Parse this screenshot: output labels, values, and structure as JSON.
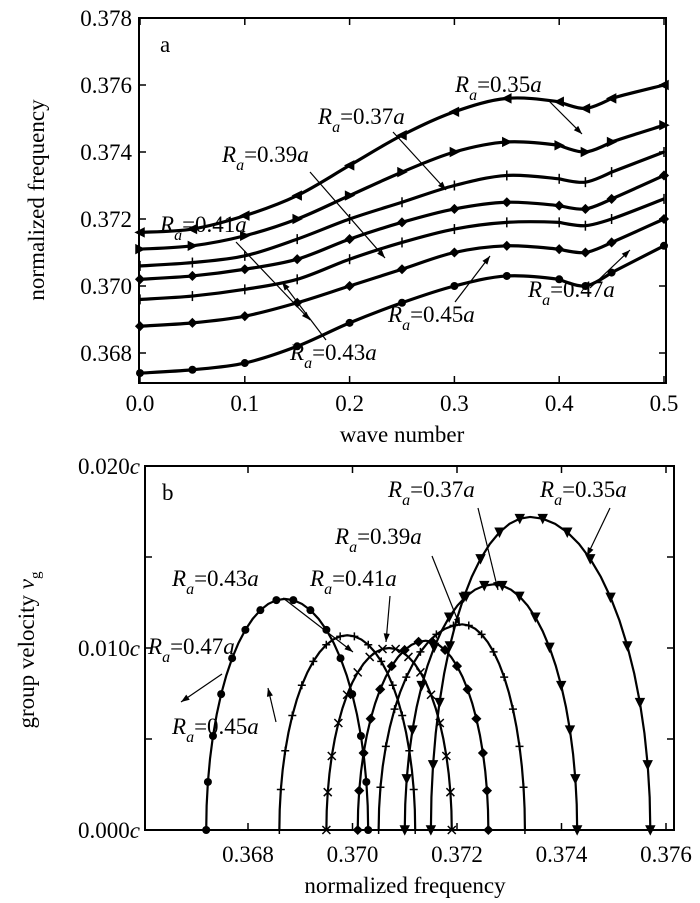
{
  "chart_data": [
    {
      "type": "line",
      "panel_label": "a",
      "xlabel": "wave number",
      "ylabel": "normalized frequency",
      "xlim": [
        0.0,
        0.5
      ],
      "ylim": [
        0.36708,
        0.378
      ],
      "xticks": [
        "0.0",
        "0.1",
        "0.2",
        "0.3",
        "0.4",
        "0.5"
      ],
      "yticks": [
        "0.368",
        "0.370",
        "0.372",
        "0.374",
        "0.376",
        "0.378"
      ],
      "x": [
        0,
        0.05,
        0.1,
        0.15,
        0.2,
        0.25,
        0.3,
        0.35,
        0.4,
        0.425,
        0.45,
        0.5
      ],
      "series": [
        {
          "name": "R_a=0.35a",
          "marker": "triangle-left",
          "values": [
            0.3716,
            0.3717,
            0.3721,
            0.3727,
            0.3736,
            0.3745,
            0.3752,
            0.3756,
            0.3755,
            0.3753,
            0.3756,
            0.376
          ]
        },
        {
          "name": "R_a=0.37a",
          "marker": "triangle-right",
          "values": [
            0.3711,
            0.3712,
            0.3715,
            0.372,
            0.3727,
            0.3734,
            0.374,
            0.3743,
            0.3742,
            0.374,
            0.3743,
            0.3748
          ]
        },
        {
          "name": "R_a=0.39a",
          "marker": "dash",
          "values": [
            0.3706,
            0.3707,
            0.3709,
            0.3714,
            0.372,
            0.3725,
            0.373,
            0.3733,
            0.3732,
            0.3731,
            0.3734,
            0.374
          ]
        },
        {
          "name": "R_a=0.41a",
          "marker": "diamond",
          "values": [
            0.3702,
            0.3703,
            0.3705,
            0.3708,
            0.3714,
            0.3719,
            0.3723,
            0.3725,
            0.3724,
            0.3723,
            0.3726,
            0.3733
          ]
        },
        {
          "name": "R_a=0.43a",
          "marker": "dash",
          "values": [
            0.3696,
            0.3697,
            0.3699,
            0.3702,
            0.3708,
            0.3713,
            0.3717,
            0.3719,
            0.3719,
            0.3718,
            0.372,
            0.3726
          ]
        },
        {
          "name": "R_a=0.45a",
          "marker": "diamond",
          "values": [
            0.3688,
            0.3689,
            0.3691,
            0.3695,
            0.37,
            0.3705,
            0.371,
            0.3712,
            0.3711,
            0.371,
            0.3713,
            0.372
          ]
        },
        {
          "name": "R_a=0.47a",
          "marker": "circle",
          "values": [
            0.3674,
            0.3675,
            0.3677,
            0.3682,
            0.3689,
            0.3695,
            0.37,
            0.3703,
            0.3702,
            0.37,
            0.3704,
            0.3712
          ]
        }
      ]
    },
    {
      "type": "line",
      "panel_label": "b",
      "xlabel": "normalized frequency",
      "ylabel_main": "group velocity ",
      "ylabel_symbol": "v",
      "ylabel_sub": "g",
      "xlim": [
        0.36603,
        0.37617
      ],
      "ylim": [
        0.0,
        0.02
      ],
      "xticks": [
        "0.368",
        "0.370",
        "0.372",
        "0.374",
        "0.376"
      ],
      "yticks": [
        {
          "num": "0.000",
          "unit": "c"
        },
        {
          "num": "0.010",
          "unit": "c"
        },
        {
          "num": "0.020",
          "unit": "c"
        }
      ],
      "series": [
        {
          "name": "R_a=0.35a",
          "marker": "triangle-down",
          "start_freq": 0.3715,
          "peak_freq": 0.3734,
          "peak_vg": 0.0172,
          "end_freq": 0.3757
        },
        {
          "name": "R_a=0.37a",
          "marker": "triangle-down",
          "start_freq": 0.371,
          "peak_freq": 0.3727,
          "peak_vg": 0.0135,
          "end_freq": 0.3743
        },
        {
          "name": "R_a=0.39a",
          "marker": "plus",
          "start_freq": 0.3705,
          "peak_freq": 0.3721,
          "peak_vg": 0.0113,
          "end_freq": 0.3733
        },
        {
          "name": "R_a=0.41a",
          "marker": "diamond",
          "start_freq": 0.3701,
          "peak_freq": 0.3714,
          "peak_vg": 0.0104,
          "end_freq": 0.3726
        },
        {
          "name": "R_a=0.43a",
          "marker": "cross",
          "start_freq": 0.3695,
          "peak_freq": 0.3707,
          "peak_vg": 0.01,
          "end_freq": 0.3719
        },
        {
          "name": "R_a=0.45a",
          "marker": "plus",
          "start_freq": 0.3686,
          "peak_freq": 0.3699,
          "peak_vg": 0.0107,
          "end_freq": 0.3712
        },
        {
          "name": "R_a=0.47a",
          "marker": "circle",
          "start_freq": 0.3672,
          "peak_freq": 0.3687,
          "peak_vg": 0.0127,
          "end_freq": 0.3703
        }
      ]
    }
  ]
}
